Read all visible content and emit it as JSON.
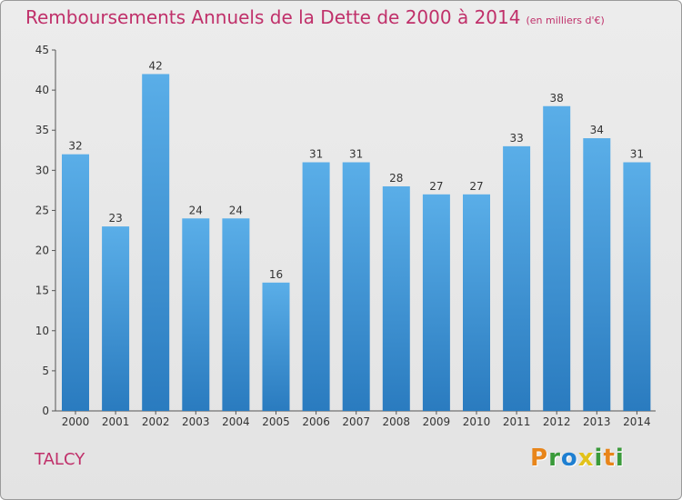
{
  "chart_data": {
    "type": "bar",
    "title": "Remboursements Annuels de la Dette de 2000 à 2014",
    "unit_label": "(en milliers d'€)",
    "categories": [
      "2000",
      "2001",
      "2002",
      "2003",
      "2004",
      "2005",
      "2006",
      "2007",
      "2008",
      "2009",
      "2010",
      "2011",
      "2012",
      "2013",
      "2014"
    ],
    "values": [
      32,
      23,
      42,
      24,
      24,
      16,
      31,
      31,
      28,
      27,
      27,
      33,
      38,
      34,
      31
    ],
    "ylim": [
      0,
      45
    ],
    "yticks": [
      0,
      5,
      10,
      15,
      20,
      25,
      30,
      35,
      40,
      45
    ],
    "xlabel": "",
    "ylabel": "",
    "grid": false,
    "bar_color_top": "#5aaee8",
    "bar_color_bottom": "#2a7bbf",
    "title_color": "#c0306a"
  },
  "footer": {
    "commune": "TALCY",
    "logo_letters": [
      "P",
      "r",
      "o",
      "x",
      "i",
      "t",
      "i"
    ],
    "logo_colors": [
      "#e8851a",
      "#3a9a3a",
      "#1e7fd1",
      "#e2c21a",
      "#3a9a3a",
      "#e8851a",
      "#3a9a3a"
    ]
  }
}
